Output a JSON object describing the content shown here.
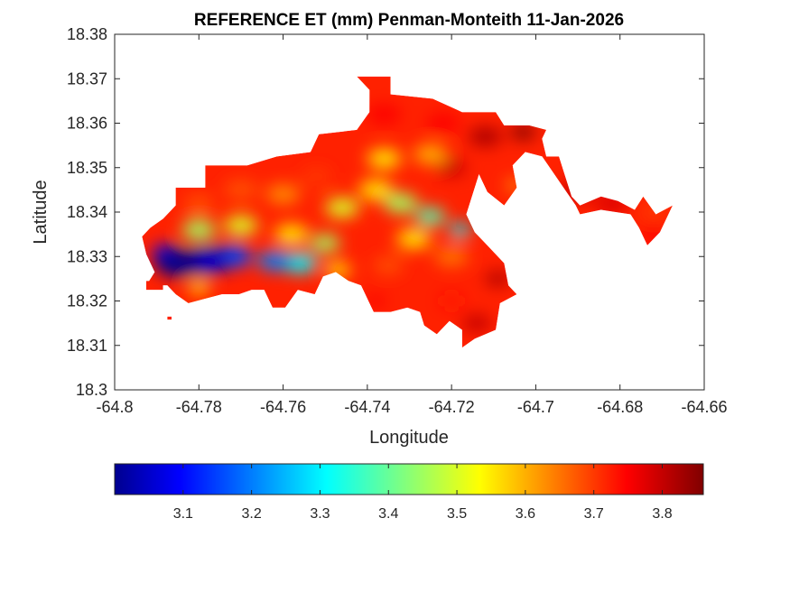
{
  "chart_data": {
    "type": "heatmap",
    "title": "REFERENCE ET (mm) Penman-Monteith 11-Jan-2026",
    "xlabel": "Longitude",
    "ylabel": "Latitude",
    "xlim": [
      -64.8,
      -64.66
    ],
    "ylim": [
      18.3,
      18.38
    ],
    "x_ticks": [
      -64.8,
      -64.78,
      -64.76,
      -64.74,
      -64.72,
      -64.7,
      -64.68,
      -64.66
    ],
    "x_tick_labels": [
      "-64.8",
      "-64.78",
      "-64.76",
      "-64.74",
      "-64.72",
      "-64.7",
      "-64.68",
      "-64.66"
    ],
    "y_ticks": [
      18.3,
      18.31,
      18.32,
      18.33,
      18.34,
      18.35,
      18.36,
      18.37,
      18.38
    ],
    "y_tick_labels": [
      "18.3",
      "18.31",
      "18.32",
      "18.33",
      "18.34",
      "18.35",
      "18.36",
      "18.37",
      "18.38"
    ],
    "grid": false,
    "colormap": "jet",
    "colorbar": {
      "orientation": "horizontal",
      "placement": "bottom",
      "range": [
        3.0,
        3.86
      ],
      "ticks": [
        3.1,
        3.2,
        3.3,
        3.4,
        3.5,
        3.6,
        3.7,
        3.8
      ],
      "tick_labels": [
        "3.1",
        "3.2",
        "3.3",
        "3.4",
        "3.5",
        "3.6",
        "3.7",
        "3.8"
      ]
    },
    "land_outline": [
      [
        -64.7915,
        18.3365
      ],
      [
        -64.7885,
        18.3385
      ],
      [
        -64.7855,
        18.3415
      ],
      [
        -64.7855,
        18.3455
      ],
      [
        -64.7785,
        18.3455
      ],
      [
        -64.7785,
        18.3505
      ],
      [
        -64.7685,
        18.3505
      ],
      [
        -64.7615,
        18.3525
      ],
      [
        -64.7535,
        18.3535
      ],
      [
        -64.7515,
        18.3575
      ],
      [
        -64.7425,
        18.3585
      ],
      [
        -64.7395,
        18.3625
      ],
      [
        -64.7395,
        18.3675
      ],
      [
        -64.7425,
        18.3705
      ],
      [
        -64.7345,
        18.3705
      ],
      [
        -64.7345,
        18.3665
      ],
      [
        -64.7245,
        18.3655
      ],
      [
        -64.7175,
        18.3625
      ],
      [
        -64.7095,
        18.3625
      ],
      [
        -64.7075,
        18.3595
      ],
      [
        -64.7015,
        18.3595
      ],
      [
        -64.6975,
        18.3585
      ],
      [
        -64.6985,
        18.3565
      ],
      [
        -64.6975,
        18.3525
      ],
      [
        -64.6945,
        18.3525
      ],
      [
        -64.6915,
        18.3435
      ],
      [
        -64.6895,
        18.3415
      ],
      [
        -64.6845,
        18.3435
      ],
      [
        -64.6805,
        18.3425
      ],
      [
        -64.6765,
        18.3405
      ],
      [
        -64.6745,
        18.3435
      ],
      [
        -64.6715,
        18.3395
      ],
      [
        -64.6675,
        18.3415
      ],
      [
        -64.6705,
        18.3355
      ],
      [
        -64.6735,
        18.3325
      ],
      [
        -64.6755,
        18.3365
      ],
      [
        -64.6775,
        18.3395
      ],
      [
        -64.6845,
        18.3405
      ],
      [
        -64.6895,
        18.3395
      ],
      [
        -64.6905,
        18.3415
      ],
      [
        -64.6985,
        18.3525
      ],
      [
        -64.7025,
        18.3535
      ],
      [
        -64.7055,
        18.3505
      ],
      [
        -64.7045,
        18.3455
      ],
      [
        -64.7075,
        18.3415
      ],
      [
        -64.7115,
        18.3445
      ],
      [
        -64.7135,
        18.3485
      ],
      [
        -64.7165,
        18.3395
      ],
      [
        -64.7145,
        18.3355
      ],
      [
        -64.7115,
        18.3325
      ],
      [
        -64.7075,
        18.3285
      ],
      [
        -64.7065,
        18.3235
      ],
      [
        -64.7045,
        18.3215
      ],
      [
        -64.7085,
        18.3195
      ],
      [
        -64.7095,
        18.3135
      ],
      [
        -64.7145,
        18.3115
      ],
      [
        -64.7175,
        18.3095
      ],
      [
        -64.7175,
        18.3135
      ],
      [
        -64.7205,
        18.3155
      ],
      [
        -64.7235,
        18.3125
      ],
      [
        -64.7265,
        18.3145
      ],
      [
        -64.7275,
        18.3175
      ],
      [
        -64.7305,
        18.3185
      ],
      [
        -64.7345,
        18.3175
      ],
      [
        -64.7385,
        18.3175
      ],
      [
        -64.7415,
        18.3235
      ],
      [
        -64.7445,
        18.3245
      ],
      [
        -64.7475,
        18.3265
      ],
      [
        -64.7505,
        18.3255
      ],
      [
        -64.7525,
        18.3215
      ],
      [
        -64.7565,
        18.3225
      ],
      [
        -64.7595,
        18.3185
      ],
      [
        -64.7625,
        18.3185
      ],
      [
        -64.7645,
        18.3225
      ],
      [
        -64.7675,
        18.3225
      ],
      [
        -64.7705,
        18.3215
      ],
      [
        -64.7745,
        18.3215
      ],
      [
        -64.7785,
        18.3205
      ],
      [
        -64.7825,
        18.3195
      ],
      [
        -64.7855,
        18.3215
      ],
      [
        -64.7875,
        18.3235
      ],
      [
        -64.7925,
        18.3235
      ],
      [
        -64.7905,
        18.3265
      ],
      [
        -64.7925,
        18.3305
      ],
      [
        -64.7935,
        18.3345
      ]
    ],
    "islets": [
      [
        [
          -64.7925,
          18.3245
        ],
        [
          -64.7885,
          18.3245
        ],
        [
          -64.7885,
          18.3225
        ],
        [
          -64.7925,
          18.3225
        ]
      ],
      [
        [
          -64.7875,
          18.3165
        ],
        [
          -64.7865,
          18.3165
        ],
        [
          -64.7865,
          18.3158
        ],
        [
          -64.7875,
          18.3158
        ]
      ]
    ],
    "et_field": [
      {
        "lon": -64.785,
        "lat": 18.3285,
        "et": 3.0,
        "radius": 0.0055
      },
      {
        "lon": -64.778,
        "lat": 18.329,
        "et": 3.05,
        "radius": 0.0055
      },
      {
        "lon": -64.772,
        "lat": 18.33,
        "et": 3.15,
        "radius": 0.0045
      },
      {
        "lon": -64.762,
        "lat": 18.329,
        "et": 3.2,
        "radius": 0.004
      },
      {
        "lon": -64.756,
        "lat": 18.3285,
        "et": 3.3,
        "radius": 0.004
      },
      {
        "lon": -64.788,
        "lat": 18.331,
        "et": 3.1,
        "radius": 0.003
      },
      {
        "lon": -64.78,
        "lat": 18.336,
        "et": 3.45,
        "radius": 0.004
      },
      {
        "lon": -64.77,
        "lat": 18.337,
        "et": 3.5,
        "radius": 0.004
      },
      {
        "lon": -64.758,
        "lat": 18.335,
        "et": 3.55,
        "radius": 0.004
      },
      {
        "lon": -64.75,
        "lat": 18.333,
        "et": 3.45,
        "radius": 0.0035
      },
      {
        "lon": -64.746,
        "lat": 18.341,
        "et": 3.5,
        "radius": 0.004
      },
      {
        "lon": -64.747,
        "lat": 18.327,
        "et": 3.55,
        "radius": 0.003
      },
      {
        "lon": -64.78,
        "lat": 18.342,
        "et": 3.68,
        "radius": 0.0035
      },
      {
        "lon": -64.77,
        "lat": 18.345,
        "et": 3.68,
        "radius": 0.004
      },
      {
        "lon": -64.76,
        "lat": 18.344,
        "et": 3.63,
        "radius": 0.004
      },
      {
        "lon": -64.752,
        "lat": 18.348,
        "et": 3.7,
        "radius": 0.0035
      },
      {
        "lon": -64.718,
        "lat": 18.336,
        "et": 3.3,
        "radius": 0.0025
      },
      {
        "lon": -64.725,
        "lat": 18.339,
        "et": 3.38,
        "radius": 0.0035
      },
      {
        "lon": -64.732,
        "lat": 18.342,
        "et": 3.45,
        "radius": 0.004
      },
      {
        "lon": -64.738,
        "lat": 18.345,
        "et": 3.55,
        "radius": 0.004
      },
      {
        "lon": -64.725,
        "lat": 18.353,
        "et": 3.6,
        "radius": 0.004
      },
      {
        "lon": -64.736,
        "lat": 18.352,
        "et": 3.55,
        "radius": 0.004
      },
      {
        "lon": -64.729,
        "lat": 18.334,
        "et": 3.55,
        "radius": 0.004
      },
      {
        "lon": -64.72,
        "lat": 18.33,
        "et": 3.65,
        "radius": 0.004
      },
      {
        "lon": -64.735,
        "lat": 18.328,
        "et": 3.68,
        "radius": 0.0035
      },
      {
        "lon": -64.72,
        "lat": 18.35,
        "et": 3.8,
        "radius": 0.0035
      },
      {
        "lon": -64.736,
        "lat": 18.362,
        "et": 3.75,
        "radius": 0.004
      },
      {
        "lon": -64.722,
        "lat": 18.36,
        "et": 3.75,
        "radius": 0.004
      },
      {
        "lon": -64.712,
        "lat": 18.357,
        "et": 3.82,
        "radius": 0.004
      },
      {
        "lon": -64.703,
        "lat": 18.358,
        "et": 3.86,
        "radius": 0.003
      },
      {
        "lon": -64.709,
        "lat": 18.325,
        "et": 3.82,
        "radius": 0.003
      },
      {
        "lon": -64.714,
        "lat": 18.315,
        "et": 3.8,
        "radius": 0.0035
      },
      {
        "lon": -64.72,
        "lat": 18.32,
        "et": 3.73,
        "radius": 0.003
      },
      {
        "lon": -64.78,
        "lat": 18.323,
        "et": 3.55,
        "radius": 0.0025
      },
      {
        "lon": -64.738,
        "lat": 18.32,
        "et": 3.75,
        "radius": 0.0025
      },
      {
        "lon": -64.69,
        "lat": 18.345,
        "et": 3.8,
        "radius": 0.004
      },
      {
        "lon": -64.682,
        "lat": 18.342,
        "et": 3.78,
        "radius": 0.004
      },
      {
        "lon": -64.672,
        "lat": 18.34,
        "et": 3.7,
        "radius": 0.0035
      },
      {
        "lon": -64.672,
        "lat": 18.335,
        "et": 3.75,
        "radius": 0.003
      },
      {
        "lon": -64.705,
        "lat": 18.346,
        "et": 3.6,
        "radius": 0.002
      }
    ]
  }
}
